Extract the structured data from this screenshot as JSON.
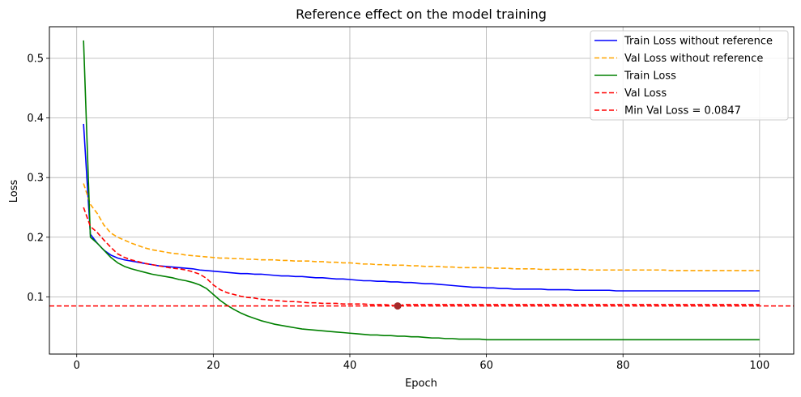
{
  "chart_data": {
    "type": "line",
    "title": "Reference effect on the model training",
    "xlabel": "Epoch",
    "ylabel": "Loss",
    "xlim": [
      -4,
      105
    ],
    "ylim": [
      0.004,
      0.553
    ],
    "xticks": [
      0,
      20,
      40,
      60,
      80,
      100
    ],
    "yticks": [
      0.1,
      0.2,
      0.3,
      0.4,
      0.5
    ],
    "xtick_labels": [
      "0",
      "20",
      "40",
      "60",
      "80",
      "100"
    ],
    "ytick_labels": [
      "0.1",
      "0.2",
      "0.3",
      "0.4",
      "0.5"
    ],
    "grid": true,
    "legend_position": "top-right",
    "series": [
      {
        "name": "Train Loss without reference",
        "color": "#0000ff",
        "dash": "solid",
        "x": [
          1,
          2,
          3,
          4,
          5,
          6,
          7,
          8,
          9,
          10,
          11,
          12,
          13,
          14,
          15,
          16,
          17,
          18,
          19,
          20,
          21,
          22,
          23,
          24,
          25,
          26,
          27,
          28,
          29,
          30,
          31,
          32,
          33,
          34,
          35,
          36,
          37,
          38,
          39,
          40,
          41,
          42,
          43,
          44,
          45,
          46,
          47,
          48,
          49,
          50,
          51,
          52,
          53,
          54,
          55,
          56,
          57,
          58,
          59,
          60,
          61,
          62,
          63,
          64,
          65,
          66,
          67,
          68,
          69,
          70,
          71,
          72,
          73,
          74,
          75,
          76,
          77,
          78,
          79,
          80,
          81,
          82,
          83,
          84,
          85,
          86,
          87,
          88,
          89,
          90,
          91,
          92,
          93,
          94,
          95,
          96,
          97,
          98,
          99,
          100
        ],
        "y": [
          0.39,
          0.205,
          0.19,
          0.178,
          0.17,
          0.165,
          0.162,
          0.16,
          0.158,
          0.156,
          0.154,
          0.152,
          0.151,
          0.15,
          0.149,
          0.148,
          0.147,
          0.145,
          0.144,
          0.143,
          0.142,
          0.141,
          0.14,
          0.139,
          0.139,
          0.138,
          0.138,
          0.137,
          0.136,
          0.135,
          0.135,
          0.134,
          0.134,
          0.133,
          0.132,
          0.132,
          0.131,
          0.13,
          0.13,
          0.129,
          0.128,
          0.127,
          0.127,
          0.126,
          0.126,
          0.125,
          0.125,
          0.124,
          0.124,
          0.123,
          0.122,
          0.122,
          0.121,
          0.12,
          0.119,
          0.118,
          0.117,
          0.116,
          0.116,
          0.115,
          0.115,
          0.114,
          0.114,
          0.113,
          0.113,
          0.113,
          0.113,
          0.113,
          0.112,
          0.112,
          0.112,
          0.112,
          0.111,
          0.111,
          0.111,
          0.111,
          0.111,
          0.111,
          0.11,
          0.11,
          0.11,
          0.11,
          0.11,
          0.11,
          0.11,
          0.11,
          0.11,
          0.11,
          0.11,
          0.11,
          0.11,
          0.11,
          0.11,
          0.11,
          0.11,
          0.11,
          0.11,
          0.11,
          0.11,
          0.11
        ]
      },
      {
        "name": "Val Loss without reference",
        "color": "#ffa500",
        "dash": "dashed",
        "x": [
          1,
          2,
          3,
          4,
          5,
          6,
          7,
          8,
          9,
          10,
          11,
          12,
          13,
          14,
          15,
          16,
          17,
          18,
          19,
          20,
          21,
          22,
          23,
          24,
          25,
          26,
          27,
          28,
          29,
          30,
          31,
          32,
          33,
          34,
          35,
          36,
          37,
          38,
          39,
          40,
          41,
          42,
          43,
          44,
          45,
          46,
          47,
          48,
          49,
          50,
          51,
          52,
          53,
          54,
          55,
          56,
          57,
          58,
          59,
          60,
          61,
          62,
          63,
          64,
          65,
          66,
          67,
          68,
          69,
          70,
          71,
          72,
          73,
          74,
          75,
          76,
          77,
          78,
          79,
          80,
          81,
          82,
          83,
          84,
          85,
          86,
          87,
          88,
          89,
          90,
          91,
          92,
          93,
          94,
          95,
          96,
          97,
          98,
          99,
          100
        ],
        "y": [
          0.29,
          0.255,
          0.24,
          0.22,
          0.207,
          0.2,
          0.195,
          0.19,
          0.186,
          0.182,
          0.179,
          0.177,
          0.175,
          0.173,
          0.172,
          0.17,
          0.169,
          0.168,
          0.167,
          0.166,
          0.165,
          0.165,
          0.164,
          0.164,
          0.163,
          0.163,
          0.162,
          0.162,
          0.162,
          0.161,
          0.161,
          0.16,
          0.16,
          0.16,
          0.159,
          0.159,
          0.158,
          0.158,
          0.157,
          0.157,
          0.156,
          0.155,
          0.155,
          0.154,
          0.154,
          0.153,
          0.153,
          0.153,
          0.152,
          0.152,
          0.151,
          0.151,
          0.151,
          0.15,
          0.15,
          0.149,
          0.149,
          0.149,
          0.149,
          0.149,
          0.148,
          0.148,
          0.148,
          0.147,
          0.147,
          0.147,
          0.147,
          0.146,
          0.146,
          0.146,
          0.146,
          0.146,
          0.146,
          0.146,
          0.145,
          0.145,
          0.145,
          0.145,
          0.145,
          0.145,
          0.145,
          0.145,
          0.145,
          0.145,
          0.145,
          0.145,
          0.144,
          0.144,
          0.144,
          0.144,
          0.144,
          0.144,
          0.144,
          0.144,
          0.144,
          0.144,
          0.144,
          0.144,
          0.144,
          0.144
        ]
      },
      {
        "name": "Train Loss",
        "color": "#008000",
        "dash": "solid",
        "x": [
          1,
          2,
          3,
          4,
          5,
          6,
          7,
          8,
          9,
          10,
          11,
          12,
          13,
          14,
          15,
          16,
          17,
          18,
          19,
          20,
          21,
          22,
          23,
          24,
          25,
          26,
          27,
          28,
          29,
          30,
          31,
          32,
          33,
          34,
          35,
          36,
          37,
          38,
          39,
          40,
          41,
          42,
          43,
          44,
          45,
          46,
          47,
          48,
          49,
          50,
          51,
          52,
          53,
          54,
          55,
          56,
          57,
          58,
          59,
          60,
          61,
          62,
          63,
          64,
          65,
          66,
          67,
          68,
          69,
          70,
          71,
          72,
          73,
          74,
          75,
          76,
          77,
          78,
          79,
          80,
          81,
          82,
          83,
          84,
          85,
          86,
          87,
          88,
          89,
          90,
          91,
          92,
          93,
          94,
          95,
          96,
          97,
          98,
          99,
          100
        ],
        "y": [
          0.53,
          0.2,
          0.19,
          0.178,
          0.166,
          0.157,
          0.151,
          0.147,
          0.144,
          0.141,
          0.138,
          0.136,
          0.134,
          0.132,
          0.129,
          0.127,
          0.124,
          0.12,
          0.114,
          0.104,
          0.094,
          0.086,
          0.079,
          0.073,
          0.068,
          0.064,
          0.06,
          0.057,
          0.054,
          0.052,
          0.05,
          0.048,
          0.046,
          0.045,
          0.044,
          0.043,
          0.042,
          0.041,
          0.04,
          0.039,
          0.038,
          0.037,
          0.036,
          0.036,
          0.035,
          0.035,
          0.034,
          0.034,
          0.033,
          0.033,
          0.032,
          0.031,
          0.031,
          0.03,
          0.03,
          0.029,
          0.029,
          0.029,
          0.029,
          0.028,
          0.028,
          0.028,
          0.028,
          0.028,
          0.028,
          0.028,
          0.028,
          0.028,
          0.028,
          0.028,
          0.028,
          0.028,
          0.028,
          0.028,
          0.028,
          0.028,
          0.028,
          0.028,
          0.028,
          0.028,
          0.028,
          0.028,
          0.028,
          0.028,
          0.028,
          0.028,
          0.028,
          0.028,
          0.028,
          0.028,
          0.028,
          0.028,
          0.028,
          0.028,
          0.028,
          0.028,
          0.028,
          0.028,
          0.028,
          0.028
        ]
      },
      {
        "name": "Val Loss",
        "color": "#ff0000",
        "dash": "dashed",
        "x": [
          1,
          2,
          3,
          4,
          5,
          6,
          7,
          8,
          9,
          10,
          11,
          12,
          13,
          14,
          15,
          16,
          17,
          18,
          19,
          20,
          21,
          22,
          23,
          24,
          25,
          26,
          27,
          28,
          29,
          30,
          31,
          32,
          33,
          34,
          35,
          36,
          37,
          38,
          39,
          40,
          41,
          42,
          43,
          44,
          45,
          46,
          47,
          48,
          49,
          50,
          51,
          52,
          53,
          54,
          55,
          56,
          57,
          58,
          59,
          60,
          61,
          62,
          63,
          64,
          65,
          66,
          67,
          68,
          69,
          70,
          71,
          72,
          73,
          74,
          75,
          76,
          77,
          78,
          79,
          80,
          81,
          82,
          83,
          84,
          85,
          86,
          87,
          88,
          89,
          90,
          91,
          92,
          93,
          94,
          95,
          96,
          97,
          98,
          99,
          100
        ],
        "y": [
          0.25,
          0.218,
          0.208,
          0.195,
          0.183,
          0.172,
          0.166,
          0.162,
          0.159,
          0.156,
          0.154,
          0.152,
          0.15,
          0.148,
          0.147,
          0.145,
          0.142,
          0.138,
          0.131,
          0.12,
          0.112,
          0.107,
          0.104,
          0.101,
          0.099,
          0.098,
          0.096,
          0.095,
          0.094,
          0.093,
          0.092,
          0.092,
          0.091,
          0.09,
          0.09,
          0.089,
          0.089,
          0.089,
          0.088,
          0.088,
          0.088,
          0.088,
          0.087,
          0.087,
          0.087,
          0.086,
          0.0847,
          0.087,
          0.087,
          0.087,
          0.087,
          0.087,
          0.087,
          0.087,
          0.087,
          0.087,
          0.087,
          0.087,
          0.087,
          0.087,
          0.087,
          0.087,
          0.087,
          0.087,
          0.087,
          0.087,
          0.087,
          0.087,
          0.087,
          0.087,
          0.087,
          0.087,
          0.087,
          0.087,
          0.087,
          0.087,
          0.087,
          0.087,
          0.087,
          0.087,
          0.087,
          0.087,
          0.087,
          0.087,
          0.087,
          0.087,
          0.087,
          0.087,
          0.087,
          0.087,
          0.087,
          0.087,
          0.087,
          0.087,
          0.087,
          0.087,
          0.087,
          0.087,
          0.087,
          0.087
        ]
      }
    ],
    "hline": {
      "name": "Min Val Loss = 0.0847",
      "y": 0.0847,
      "color": "#ff0000",
      "dash": "dashed"
    },
    "min_marker": {
      "x": 47,
      "y": 0.0847,
      "color": "#a52a2a"
    }
  }
}
